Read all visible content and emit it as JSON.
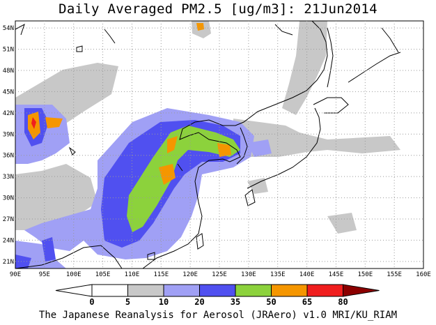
{
  "title": "Daily Averaged PM2.5 [ug/m3]: 21Jun2014",
  "footer": "The Japanese Reanalysis for Aerosol (JRAero) v1.0 MRI/KU_RIAM",
  "map": {
    "lon_range": [
      90,
      160
    ],
    "lat_range": [
      20,
      55
    ],
    "x_ticks": [
      "90E",
      "95E",
      "100E",
      "105E",
      "110E",
      "115E",
      "120E",
      "125E",
      "130E",
      "135E",
      "140E",
      "145E",
      "150E",
      "155E",
      "160E"
    ],
    "y_ticks": [
      "21N",
      "24N",
      "27N",
      "30N",
      "33N",
      "36N",
      "39N",
      "42N",
      "45N",
      "48N",
      "51N",
      "54N"
    ]
  },
  "colorbar": {
    "labels": [
      "0",
      "5",
      "10",
      "20",
      "35",
      "50",
      "65",
      "80"
    ],
    "colors": [
      "#ffffff",
      "#c8c8c8",
      "#a0a0f5",
      "#5050f0",
      "#8cd23c",
      "#f59600",
      "#f01e1e",
      "#8c0000"
    ]
  }
}
